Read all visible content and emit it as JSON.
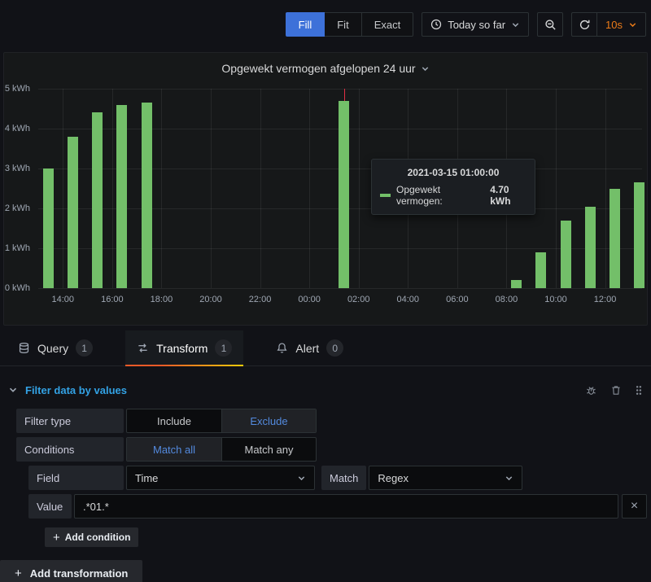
{
  "colors": {
    "accent_blue": "#3d71d9",
    "link_blue": "#33a2e5",
    "bar_green": "#73bf69",
    "interval_orange": "#eb7b18",
    "cursor_red": "#e02f44"
  },
  "toolbar": {
    "view_modes": [
      {
        "label": "Fill",
        "active": true
      },
      {
        "label": "Fit",
        "active": false
      },
      {
        "label": "Exact",
        "active": false
      }
    ],
    "time_range_label": "Today so far",
    "refresh_interval": "10s"
  },
  "panel": {
    "title": "Opgewekt vermogen afgelopen 24 uur"
  },
  "chart_data": {
    "type": "bar",
    "title": "Opgewekt vermogen afgelopen 24 uur",
    "series": [
      {
        "name": "Opgewekt vermogen",
        "color": "#73bf69"
      }
    ],
    "unit": "kWh",
    "ylim": [
      0,
      5
    ],
    "x_domain_hours": 24.5,
    "grid": true,
    "yticks": [
      {
        "label": "0 kWh",
        "value": 0
      },
      {
        "label": "1 kWh",
        "value": 1
      },
      {
        "label": "2 kWh",
        "value": 2
      },
      {
        "label": "3 kWh",
        "value": 3
      },
      {
        "label": "4 kWh",
        "value": 4
      },
      {
        "label": "5 kWh",
        "value": 5
      }
    ],
    "xticks": [
      {
        "label": "14:00",
        "hour": 1
      },
      {
        "label": "16:00",
        "hour": 3
      },
      {
        "label": "18:00",
        "hour": 5
      },
      {
        "label": "20:00",
        "hour": 7
      },
      {
        "label": "22:00",
        "hour": 9
      },
      {
        "label": "00:00",
        "hour": 11
      },
      {
        "label": "02:00",
        "hour": 13
      },
      {
        "label": "04:00",
        "hour": 15
      },
      {
        "label": "06:00",
        "hour": 17
      },
      {
        "label": "08:00",
        "hour": 19
      },
      {
        "label": "10:00",
        "hour": 21
      },
      {
        "label": "12:00",
        "hour": 23
      }
    ],
    "bars": [
      {
        "time": "13:00",
        "hour": 0.4,
        "value": 3.0
      },
      {
        "time": "14:00",
        "hour": 1.4,
        "value": 3.8
      },
      {
        "time": "15:00",
        "hour": 2.4,
        "value": 4.4
      },
      {
        "time": "16:00",
        "hour": 3.4,
        "value": 4.6
      },
      {
        "time": "17:00",
        "hour": 4.4,
        "value": 4.65
      },
      {
        "time": "01:00",
        "hour": 12.4,
        "value": 4.7
      },
      {
        "time": "08:00",
        "hour": 19.4,
        "value": 0.2
      },
      {
        "time": "09:00",
        "hour": 20.4,
        "value": 0.9
      },
      {
        "time": "10:00",
        "hour": 21.4,
        "value": 1.7
      },
      {
        "time": "11:00",
        "hour": 22.4,
        "value": 2.05
      },
      {
        "time": "12:00",
        "hour": 23.4,
        "value": 2.5
      },
      {
        "time": "13:00",
        "hour": 24.4,
        "value": 2.65
      }
    ],
    "cursor": {
      "hour": 12.4,
      "color": "#e02f44"
    }
  },
  "chart_tooltip": {
    "timestamp": "2021-03-15 01:00:00",
    "series_label": "Opgewekt vermogen:",
    "value": "4.70 kWh"
  },
  "tabs": [
    {
      "label": "Query",
      "count": "1",
      "active": false
    },
    {
      "label": "Transform",
      "count": "1",
      "active": true
    },
    {
      "label": "Alert",
      "count": "0",
      "active": false
    }
  ],
  "transform": {
    "section_title": "Filter data by values",
    "filter_type_label": "Filter type",
    "filter_type_options": [
      "Include",
      "Exclude"
    ],
    "filter_type_selected": "Exclude",
    "conditions_label": "Conditions",
    "conditions_options": [
      "Match all",
      "Match any"
    ],
    "conditions_selected": "Match all",
    "field_label": "Field",
    "field_value": "Time",
    "match_label": "Match",
    "match_value": "Regex",
    "value_label": "Value",
    "value_input": ".*01.*",
    "add_condition_label": "Add condition",
    "add_transformation_label": "Add transformation"
  },
  "icons": {
    "clear_glyph": "×",
    "add_glyph": "+"
  }
}
